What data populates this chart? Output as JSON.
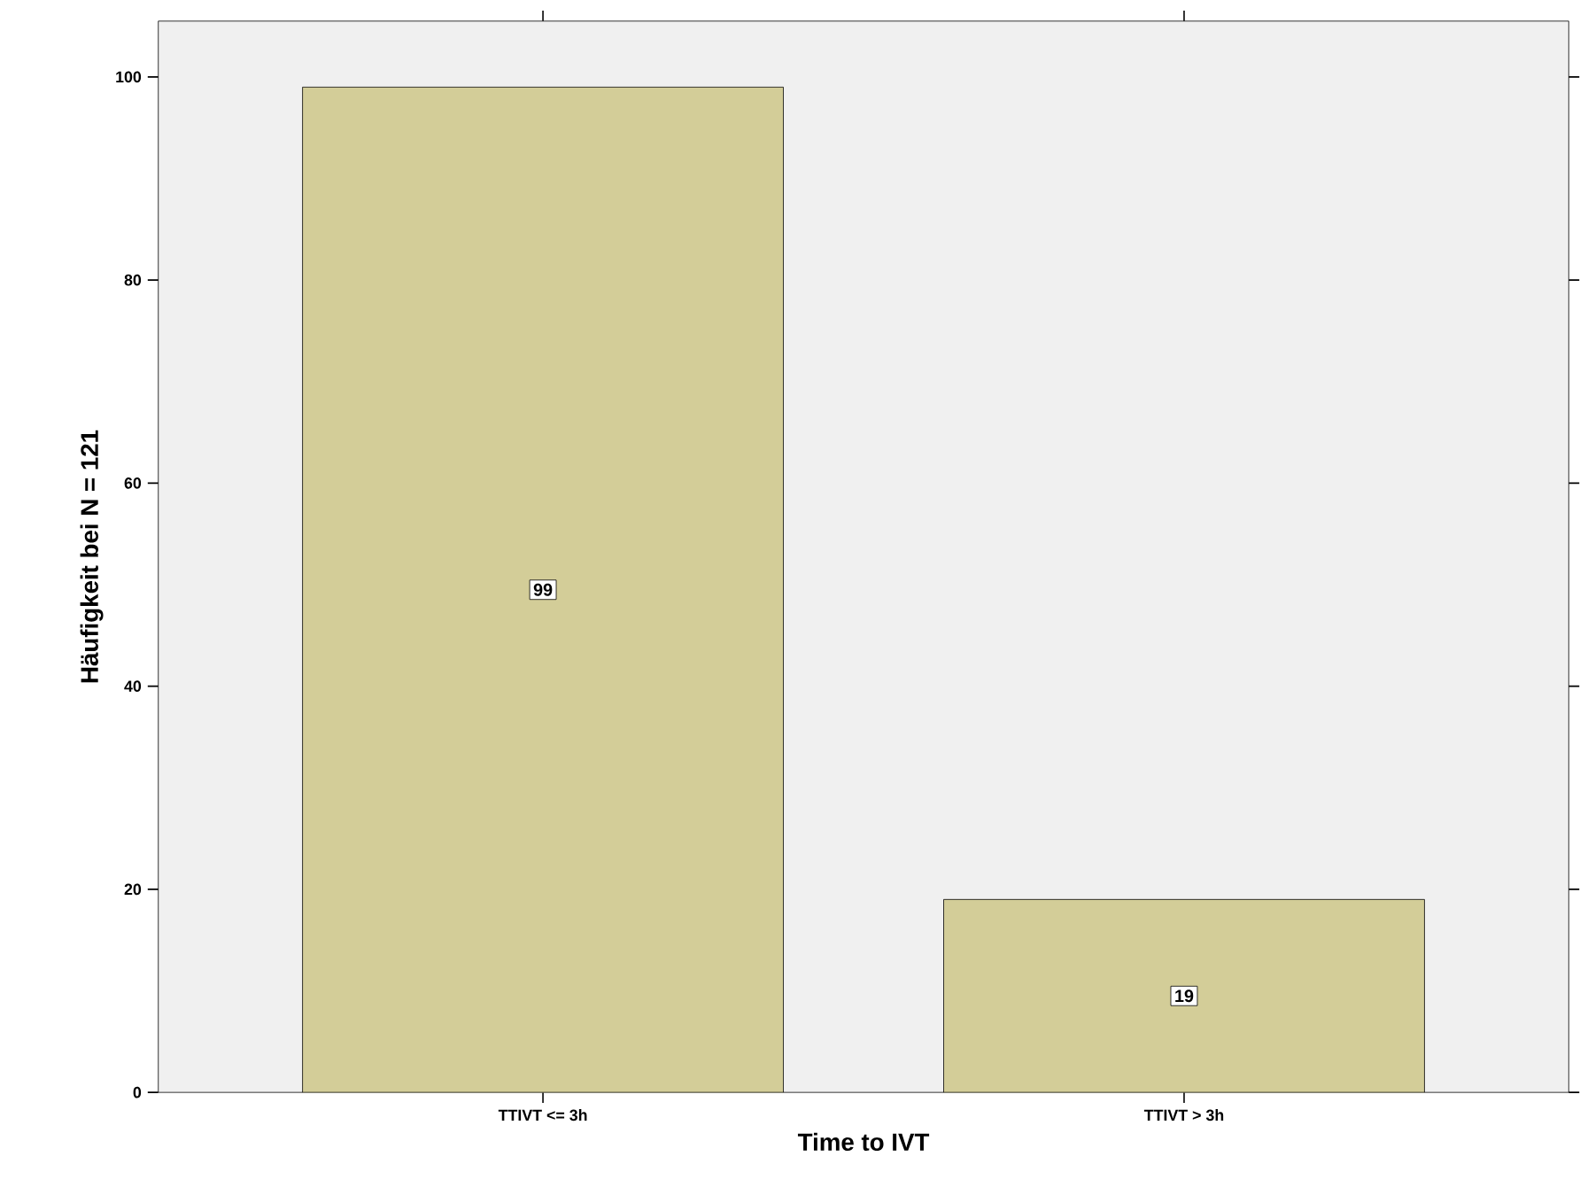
{
  "chart_data": {
    "type": "bar",
    "xlabel": "Time to IVT",
    "ylabel": "Häufigkeit bei N = 121",
    "categories": [
      "TTIVT <= 3h",
      "TTIVT > 3h"
    ],
    "values": [
      99,
      19
    ],
    "color": "#d3cd98",
    "ylim": [
      0,
      105.5
    ],
    "yticks": [
      0,
      20,
      40,
      60,
      80,
      100
    ],
    "grid": false,
    "data_labels": true
  }
}
